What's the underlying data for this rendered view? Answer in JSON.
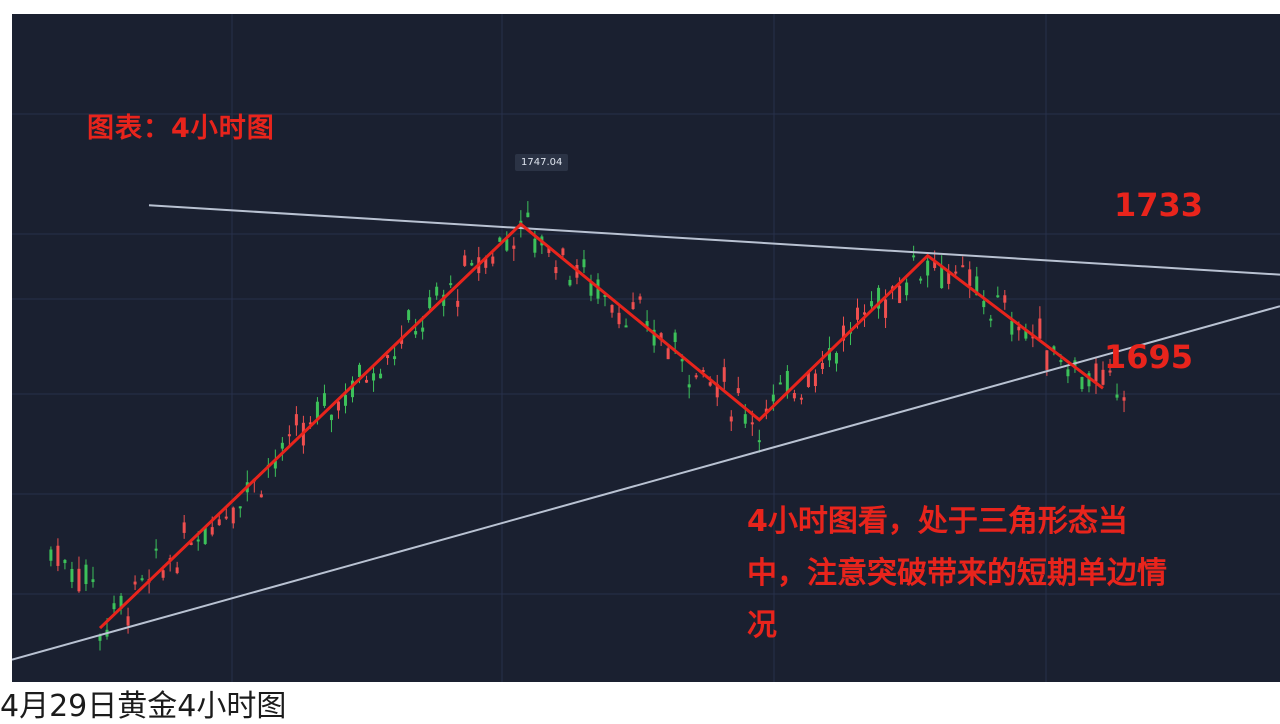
{
  "chart_data": {
    "type": "candlestick",
    "title": "图表：4小时图",
    "peak_label": "1747.04",
    "resistance_label": "1733",
    "support_label": "1695",
    "annotation": "4小时图看，处于三角形态当中，注意突破带来的短期单边情况",
    "ylim": [
      1612,
      1760
    ],
    "grid": true,
    "colors": {
      "up": "#ef4f4f",
      "down": "#3cc15a",
      "trend": "#e8241c",
      "triangle": "#b9c2d2",
      "background": "#1a2030"
    },
    "pivots": [
      {
        "i": 0,
        "price": 1618
      },
      {
        "i": 60,
        "price": 1746
      },
      {
        "i": 94,
        "price": 1684
      },
      {
        "i": 118,
        "price": 1736
      },
      {
        "i": 143,
        "price": 1694
      }
    ],
    "resistance_line": {
      "start": 1752,
      "end": 1730
    },
    "support_line": {
      "start": 1608,
      "end": 1720
    }
  },
  "caption": "4月29日黄金4小时图"
}
